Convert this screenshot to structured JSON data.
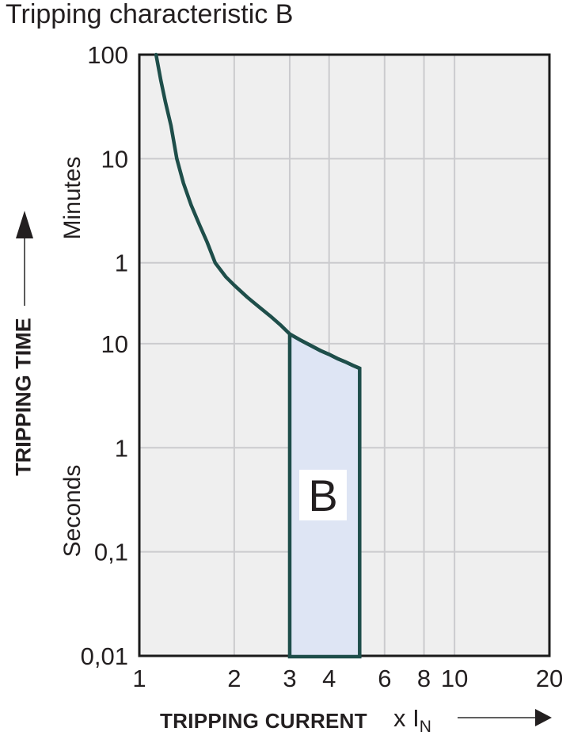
{
  "title": "Tripping characteristic B",
  "y_axis": {
    "title": "TRIPPING TIME",
    "unit_top": "Minutes",
    "unit_bottom": "Seconds",
    "range_seconds": [
      0.01,
      6000
    ],
    "ticks": [
      {
        "label": "100",
        "t": 6000
      },
      {
        "label": "10",
        "t": 600
      },
      {
        "label": "1",
        "t": 60
      },
      {
        "label": "10",
        "t": 10
      },
      {
        "label": "1",
        "t": 1
      },
      {
        "label": "0,1",
        "t": 0.1
      },
      {
        "label": "0,01",
        "t": 0.01
      }
    ]
  },
  "x_axis": {
    "title": "TRIPPING CURRENT",
    "multiplier": "x I",
    "multiplier_sub": "N",
    "range": [
      1,
      20
    ],
    "ticks": [
      {
        "label": "1",
        "v": 1
      },
      {
        "label": "2",
        "v": 2
      },
      {
        "label": "3",
        "v": 3
      },
      {
        "label": "4",
        "v": 4
      },
      {
        "label": "6",
        "v": 6
      },
      {
        "label": "8",
        "v": 8
      },
      {
        "label": "10",
        "v": 10
      },
      {
        "label": "20",
        "v": 20
      }
    ]
  },
  "chart_data": {
    "type": "line",
    "scale": "log-log",
    "title": "Tripping characteristic B",
    "xlabel": "TRIPPING CURRENT x IN",
    "ylabel": "TRIPPING TIME (minutes / seconds)",
    "x_range": [
      1,
      20
    ],
    "y_range_seconds": [
      0.01,
      6000
    ],
    "grid": true,
    "x_gridlines": [
      2,
      3,
      4,
      6,
      8,
      10
    ],
    "y_gridlines_seconds": [
      600,
      60,
      10,
      1,
      0.1
    ],
    "curve": {
      "name": "B thermal tripping curve",
      "points_x_time_s": [
        [
          1.13,
          6000
        ],
        [
          1.17,
          3400
        ],
        [
          1.21,
          2100
        ],
        [
          1.26,
          1250
        ],
        [
          1.315,
          600
        ],
        [
          1.38,
          350
        ],
        [
          1.46,
          215
        ],
        [
          1.55,
          140
        ],
        [
          1.64,
          95
        ],
        [
          1.74,
          60
        ],
        [
          1.88,
          44
        ],
        [
          2.0,
          36.5
        ],
        [
          2.2,
          28
        ],
        [
          2.4,
          22.5
        ],
        [
          2.6,
          18.5
        ],
        [
          2.8,
          15.2
        ],
        [
          3.0,
          12.4
        ]
      ]
    },
    "region": {
      "label": "B",
      "x_min": 3,
      "x_max": 5,
      "bottom_time_s": 0.01,
      "top_points_x_time_s": [
        [
          3.0,
          12.4
        ],
        [
          3.25,
          10.8
        ],
        [
          3.5,
          9.6
        ],
        [
          3.75,
          8.6
        ],
        [
          4.0,
          7.9
        ],
        [
          4.25,
          7.2
        ],
        [
          4.5,
          6.7
        ],
        [
          4.75,
          6.2
        ],
        [
          5.0,
          5.8
        ]
      ]
    }
  },
  "colors": {
    "curve": "#1e4e4a",
    "region_fill": "#dee5f4",
    "plot_bg": "#efefef",
    "grid": "#cbcbce",
    "border": "#1a1a1a",
    "text": "#231f20",
    "label_box": "#ffffff",
    "arrow_line": "#4a4a4a"
  }
}
